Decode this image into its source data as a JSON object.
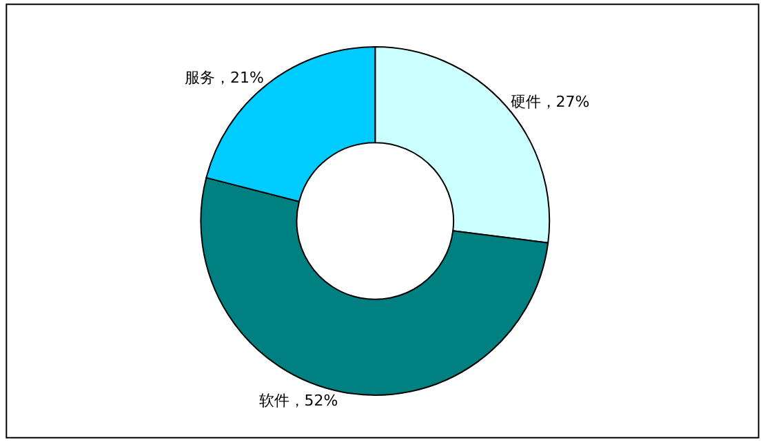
{
  "chart_data": {
    "type": "donut",
    "categories": [
      "硬件",
      "软件",
      "服务"
    ],
    "values": [
      27,
      52,
      21
    ],
    "colors": [
      "#ccffff",
      "#008080",
      "#00ccff"
    ],
    "value_labels": [
      "27%",
      "52%",
      "21%"
    ],
    "legend": false
  }
}
